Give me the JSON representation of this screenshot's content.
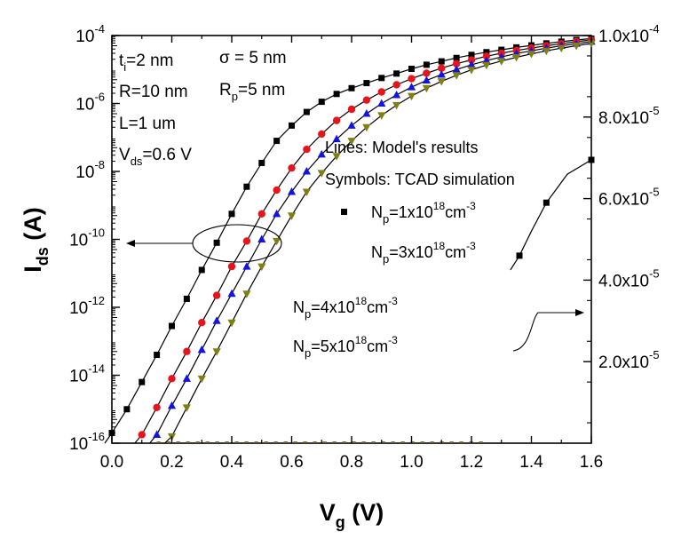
{
  "chart_data": {
    "type": "line",
    "xlabel": "V",
    "xlabel_sub": "g",
    "xlabel_unit": "(V)",
    "ylabel": "I",
    "ylabel_sub": "ds",
    "ylabel_unit": "(A)",
    "xlim": [
      0.0,
      1.6
    ],
    "x_ticks": [
      "0.0",
      "0.2",
      "0.4",
      "0.6",
      "0.8",
      "1.0",
      "1.2",
      "1.4",
      "1.6"
    ],
    "y_left": {
      "scale": "log",
      "lim_exp": [
        -16,
        -4
      ],
      "ticks": [
        {
          "base": "10",
          "exp": "-16"
        },
        {
          "base": "10",
          "exp": "-14"
        },
        {
          "base": "10",
          "exp": "-12"
        },
        {
          "base": "10",
          "exp": "-10"
        },
        {
          "base": "10",
          "exp": "-8"
        },
        {
          "base": "10",
          "exp": "-6"
        },
        {
          "base": "10",
          "exp": "-4"
        }
      ]
    },
    "y_right": {
      "scale": "linear",
      "lim": [
        0,
        0.0001
      ],
      "ticks": [
        {
          "mant": "2.0x10",
          "exp": "-5"
        },
        {
          "mant": "4.0x10",
          "exp": "-5"
        },
        {
          "mant": "6.0x10",
          "exp": "-5"
        },
        {
          "mant": "8.0x10",
          "exp": "-5"
        },
        {
          "mant": "1.0x10",
          "exp": "-4"
        }
      ]
    },
    "annotations": {
      "ti": {
        "main": "t",
        "sub": "i",
        "rest": "=2 nm"
      },
      "r": "R=10 nm",
      "l": "L=1 um",
      "vds": {
        "main": "V",
        "sub": "ds",
        "rest": "=0.6 V"
      },
      "sigma": {
        "main": "σ",
        "rest": " = 5 nm"
      },
      "rp": {
        "main": "R",
        "sub": "p",
        "rest": "=5 nm"
      },
      "lines_note": "Lines: Model's results",
      "symbols_note": "Symbols: TCAD simulation"
    },
    "legend": [
      {
        "pre": "N",
        "sub": "p",
        "mid": "=1x10",
        "sup": "18",
        "unit": "cm",
        "unit_sup": "-3"
      },
      {
        "pre": "N",
        "sub": "p",
        "mid": "=3x10",
        "sup": "18",
        "unit": "cm",
        "unit_sup": "-3"
      },
      {
        "pre": "N",
        "sub": "p",
        "mid": "=4x10",
        "sup": "18",
        "unit": "cm",
        "unit_sup": "-3"
      },
      {
        "pre": "N",
        "sub": "p",
        "mid": "=5x10",
        "sup": "18",
        "unit": "cm",
        "unit_sup": "-3"
      }
    ],
    "series": [
      {
        "marker": "square",
        "color": "#000000",
        "x": [
          0.0,
          0.05,
          0.1,
          0.15,
          0.2,
          0.25,
          0.3,
          0.35,
          0.4,
          0.45,
          0.5,
          0.55,
          0.6,
          0.65,
          0.7,
          0.75,
          0.8,
          0.85,
          0.9,
          0.95,
          1.0,
          1.05,
          1.1,
          1.15,
          1.2,
          1.25,
          1.3,
          1.35,
          1.4,
          1.45,
          1.5,
          1.55,
          1.6
        ],
        "log_y": [
          -15.7,
          -15.0,
          -14.2,
          -13.4,
          -12.55,
          -11.75,
          -10.9,
          -10.1,
          -9.25,
          -8.45,
          -7.75,
          -7.1,
          -6.65,
          -6.25,
          -5.95,
          -5.72,
          -5.55,
          -5.4,
          -5.25,
          -5.12,
          -4.98,
          -4.86,
          -4.76,
          -4.66,
          -4.57,
          -4.49,
          -4.42,
          -4.35,
          -4.29,
          -4.23,
          -4.18,
          -4.13,
          -4.09
        ]
      },
      {
        "marker": "circle",
        "color": "#e8141c",
        "x": [
          0.1,
          0.15,
          0.2,
          0.25,
          0.3,
          0.35,
          0.4,
          0.45,
          0.5,
          0.55,
          0.6,
          0.65,
          0.7,
          0.75,
          0.8,
          0.85,
          0.9,
          0.95,
          1.0,
          1.05,
          1.1,
          1.15,
          1.2,
          1.25,
          1.3,
          1.35,
          1.4,
          1.45,
          1.5,
          1.55,
          1.6
        ],
        "log_y": [
          -15.75,
          -14.95,
          -14.1,
          -13.3,
          -12.45,
          -11.65,
          -10.8,
          -10.05,
          -9.25,
          -8.55,
          -7.9,
          -7.35,
          -6.9,
          -6.5,
          -6.17,
          -5.9,
          -5.66,
          -5.45,
          -5.27,
          -5.11,
          -4.96,
          -4.83,
          -4.72,
          -4.61,
          -4.52,
          -4.44,
          -4.37,
          -4.3,
          -4.24,
          -4.18,
          -4.13
        ]
      },
      {
        "marker": "triangle-up",
        "color": "#1414e0",
        "x": [
          0.15,
          0.2,
          0.25,
          0.3,
          0.35,
          0.4,
          0.45,
          0.5,
          0.55,
          0.6,
          0.65,
          0.7,
          0.75,
          0.8,
          0.85,
          0.9,
          0.95,
          1.0,
          1.05,
          1.1,
          1.15,
          1.2,
          1.25,
          1.3,
          1.35,
          1.4,
          1.45,
          1.5,
          1.55,
          1.6
        ],
        "log_y": [
          -15.75,
          -14.9,
          -14.1,
          -13.25,
          -12.4,
          -11.6,
          -10.8,
          -10.0,
          -9.25,
          -8.6,
          -8.0,
          -7.5,
          -7.05,
          -6.65,
          -6.3,
          -6.0,
          -5.75,
          -5.52,
          -5.32,
          -5.15,
          -5.0,
          -4.86,
          -4.74,
          -4.63,
          -4.53,
          -4.45,
          -4.37,
          -4.3,
          -4.24,
          -4.18
        ]
      },
      {
        "marker": "triangle-down",
        "color": "#7f7f14",
        "x": [
          0.2,
          0.25,
          0.3,
          0.35,
          0.4,
          0.45,
          0.5,
          0.55,
          0.6,
          0.65,
          0.7,
          0.75,
          0.8,
          0.85,
          0.9,
          0.95,
          1.0,
          1.05,
          1.1,
          1.15,
          1.2,
          1.25,
          1.3,
          1.35,
          1.4,
          1.45,
          1.5,
          1.55,
          1.6
        ],
        "log_y": [
          -15.8,
          -14.95,
          -14.1,
          -13.3,
          -12.45,
          -11.6,
          -10.8,
          -10.05,
          -9.3,
          -8.6,
          -8.05,
          -7.55,
          -7.1,
          -6.7,
          -6.35,
          -6.05,
          -5.78,
          -5.55,
          -5.35,
          -5.17,
          -5.01,
          -4.87,
          -4.75,
          -4.64,
          -4.54,
          -4.45,
          -4.37,
          -4.3,
          -4.23
        ]
      }
    ]
  }
}
